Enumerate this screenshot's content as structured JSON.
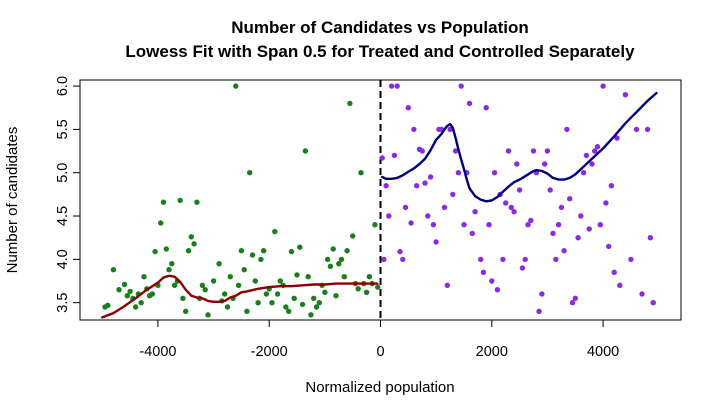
{
  "chart_data": {
    "type": "scatter",
    "title": "Number of Candidates vs Population",
    "subtitle": "Lowess Fit with Span 0.5 for Treated and Controlled Separately",
    "xlabel": "Normalized population",
    "ylabel": "Number of candidates",
    "xlim": [
      -5400,
      5400
    ],
    "ylim": [
      3.3,
      6.07
    ],
    "x_ticks": [
      -4000,
      -2000,
      0,
      2000,
      4000
    ],
    "x_tick_labels": [
      "-4000",
      "-2000",
      "0",
      "2000",
      "4000"
    ],
    "y_ticks": [
      3.5,
      4.0,
      4.5,
      5.0,
      5.5,
      6.0
    ],
    "y_tick_labels": [
      "3.5",
      "4.0",
      "4.5",
      "5.0",
      "5.5",
      "6.0"
    ],
    "grid": false,
    "cutoff": 0,
    "series": [
      {
        "role": "control",
        "mark": "point",
        "color": "#1a7f1a",
        "points": [
          [
            -4950,
            3.45
          ],
          [
            -4900,
            3.47
          ],
          [
            -4800,
            3.88
          ],
          [
            -4700,
            3.65
          ],
          [
            -4600,
            3.71
          ],
          [
            -4550,
            3.58
          ],
          [
            -4500,
            3.63
          ],
          [
            -4450,
            3.55
          ],
          [
            -4400,
            3.45
          ],
          [
            -4350,
            3.6
          ],
          [
            -4300,
            3.5
          ],
          [
            -4250,
            3.8
          ],
          [
            -4200,
            3.66
          ],
          [
            -4150,
            3.58
          ],
          [
            -4100,
            3.6
          ],
          [
            -4050,
            4.09
          ],
          [
            -4000,
            3.7
          ],
          [
            -3950,
            4.42
          ],
          [
            -3900,
            4.66
          ],
          [
            -3850,
            4.12
          ],
          [
            -3800,
            3.88
          ],
          [
            -3750,
            3.95
          ],
          [
            -3700,
            3.7
          ],
          [
            -3650,
            3.75
          ],
          [
            -3600,
            4.68
          ],
          [
            -3550,
            3.55
          ],
          [
            -3500,
            3.4
          ],
          [
            -3450,
            4.1
          ],
          [
            -3400,
            4.26
          ],
          [
            -3350,
            4.18
          ],
          [
            -3300,
            4.66
          ],
          [
            -3250,
            3.55
          ],
          [
            -3200,
            3.7
          ],
          [
            -3150,
            3.65
          ],
          [
            -3100,
            3.36
          ],
          [
            -3000,
            3.75
          ],
          [
            -2900,
            3.95
          ],
          [
            -2850,
            3.52
          ],
          [
            -2800,
            3.6
          ],
          [
            -2750,
            3.45
          ],
          [
            -2700,
            3.8
          ],
          [
            -2650,
            3.55
          ],
          [
            -2600,
            6.0
          ],
          [
            -2550,
            3.7
          ],
          [
            -2500,
            4.1
          ],
          [
            -2450,
            3.88
          ],
          [
            -2400,
            3.4
          ],
          [
            -2350,
            5.0
          ],
          [
            -2300,
            4.05
          ],
          [
            -2250,
            3.75
          ],
          [
            -2200,
            3.5
          ],
          [
            -2150,
            4.0
          ],
          [
            -2100,
            4.1
          ],
          [
            -2050,
            3.6
          ],
          [
            -2000,
            3.66
          ],
          [
            -1950,
            3.5
          ],
          [
            -1900,
            4.32
          ],
          [
            -1850,
            3.6
          ],
          [
            -1800,
            3.75
          ],
          [
            -1750,
            3.7
          ],
          [
            -1700,
            3.45
          ],
          [
            -1650,
            3.4
          ],
          [
            -1600,
            4.09
          ],
          [
            -1550,
            3.55
          ],
          [
            -1500,
            3.82
          ],
          [
            -1450,
            4.14
          ],
          [
            -1400,
            3.48
          ],
          [
            -1350,
            5.25
          ],
          [
            -1300,
            3.8
          ],
          [
            -1250,
            3.36
          ],
          [
            -1200,
            3.55
          ],
          [
            -1150,
            3.45
          ],
          [
            -1100,
            3.5
          ],
          [
            -1050,
            3.7
          ],
          [
            -1000,
            3.62
          ],
          [
            -950,
            4.0
          ],
          [
            -900,
            3.92
          ],
          [
            -850,
            4.12
          ],
          [
            -800,
            3.58
          ],
          [
            -750,
            3.95
          ],
          [
            -700,
            4.0
          ],
          [
            -650,
            3.8
          ],
          [
            -600,
            4.1
          ],
          [
            -550,
            5.8
          ],
          [
            -500,
            4.27
          ],
          [
            -450,
            3.72
          ],
          [
            -400,
            3.66
          ],
          [
            -350,
            5.0
          ],
          [
            -300,
            3.72
          ],
          [
            -250,
            3.62
          ],
          [
            -200,
            3.8
          ],
          [
            -150,
            3.72
          ],
          [
            -100,
            4.4
          ],
          [
            -50,
            3.68
          ]
        ]
      },
      {
        "role": "treated",
        "mark": "point",
        "color": "#8a2be2",
        "points": [
          [
            30,
            5.17
          ],
          [
            60,
            4.0
          ],
          [
            100,
            4.85
          ],
          [
            150,
            4.5
          ],
          [
            200,
            6.0
          ],
          [
            250,
            5.2
          ],
          [
            300,
            6.0
          ],
          [
            350,
            4.09
          ],
          [
            400,
            4.0
          ],
          [
            450,
            4.6
          ],
          [
            500,
            5.75
          ],
          [
            550,
            4.42
          ],
          [
            600,
            5.5
          ],
          [
            650,
            4.85
          ],
          [
            700,
            5.27
          ],
          [
            750,
            5.25
          ],
          [
            800,
            4.88
          ],
          [
            850,
            4.5
          ],
          [
            900,
            4.95
          ],
          [
            950,
            4.4
          ],
          [
            1000,
            4.2
          ],
          [
            1050,
            5.5
          ],
          [
            1100,
            5.5
          ],
          [
            1150,
            4.6
          ],
          [
            1200,
            3.7
          ],
          [
            1250,
            5.5
          ],
          [
            1300,
            4.75
          ],
          [
            1350,
            5.25
          ],
          [
            1400,
            5.0
          ],
          [
            1450,
            6.0
          ],
          [
            1500,
            4.4
          ],
          [
            1550,
            5.0
          ],
          [
            1600,
            5.8
          ],
          [
            1650,
            4.3
          ],
          [
            1700,
            4.55
          ],
          [
            1800,
            4.0
          ],
          [
            1850,
            3.85
          ],
          [
            1900,
            5.75
          ],
          [
            1950,
            4.4
          ],
          [
            2000,
            3.75
          ],
          [
            2050,
            5.0
          ],
          [
            2100,
            3.65
          ],
          [
            2150,
            4.75
          ],
          [
            2200,
            4.0
          ],
          [
            2250,
            4.65
          ],
          [
            2300,
            5.25
          ],
          [
            2350,
            4.6
          ],
          [
            2400,
            4.55
          ],
          [
            2450,
            5.1
          ],
          [
            2500,
            4.8
          ],
          [
            2550,
            3.9
          ],
          [
            2600,
            4.0
          ],
          [
            2650,
            4.4
          ],
          [
            2700,
            4.45
          ],
          [
            2750,
            5.25
          ],
          [
            2800,
            5.0
          ],
          [
            2850,
            3.4
          ],
          [
            2900,
            3.6
          ],
          [
            2950,
            5.1
          ],
          [
            3000,
            5.25
          ],
          [
            3050,
            4.8
          ],
          [
            3100,
            4.3
          ],
          [
            3150,
            4.0
          ],
          [
            3200,
            4.4
          ],
          [
            3250,
            4.6
          ],
          [
            3300,
            4.1
          ],
          [
            3350,
            5.5
          ],
          [
            3400,
            4.7
          ],
          [
            3450,
            3.5
          ],
          [
            3500,
            3.55
          ],
          [
            3550,
            4.25
          ],
          [
            3600,
            4.5
          ],
          [
            3650,
            5.0
          ],
          [
            3700,
            5.2
          ],
          [
            3750,
            4.35
          ],
          [
            3800,
            5.1
          ],
          [
            3850,
            5.25
          ],
          [
            3900,
            5.3
          ],
          [
            3950,
            4.4
          ],
          [
            4000,
            6.0
          ],
          [
            4050,
            4.65
          ],
          [
            4100,
            4.15
          ],
          [
            4150,
            4.85
          ],
          [
            4200,
            3.85
          ],
          [
            4250,
            5.4
          ],
          [
            4300,
            3.7
          ],
          [
            4400,
            5.9
          ],
          [
            4500,
            4.0
          ],
          [
            4600,
            5.5
          ],
          [
            4700,
            3.6
          ],
          [
            4800,
            5.5
          ],
          [
            4850,
            4.25
          ],
          [
            4900,
            3.5
          ]
        ]
      },
      {
        "role": "control_fit",
        "mark": "line",
        "color": "#8b0000",
        "points": [
          [
            -5000,
            3.33
          ],
          [
            -4800,
            3.38
          ],
          [
            -4600,
            3.46
          ],
          [
            -4400,
            3.55
          ],
          [
            -4200,
            3.65
          ],
          [
            -4000,
            3.73
          ],
          [
            -3900,
            3.79
          ],
          [
            -3800,
            3.81
          ],
          [
            -3700,
            3.8
          ],
          [
            -3600,
            3.74
          ],
          [
            -3500,
            3.65
          ],
          [
            -3400,
            3.58
          ],
          [
            -3300,
            3.56
          ],
          [
            -3200,
            3.55
          ],
          [
            -3100,
            3.52
          ],
          [
            -3000,
            3.51
          ],
          [
            -2900,
            3.51
          ],
          [
            -2800,
            3.52
          ],
          [
            -2700,
            3.56
          ],
          [
            -2600,
            3.58
          ],
          [
            -2500,
            3.62
          ],
          [
            -2400,
            3.63
          ],
          [
            -2200,
            3.66
          ],
          [
            -2000,
            3.68
          ],
          [
            -1800,
            3.69
          ],
          [
            -1600,
            3.69
          ],
          [
            -1400,
            3.7
          ],
          [
            -1200,
            3.71
          ],
          [
            -1000,
            3.71
          ],
          [
            -800,
            3.72
          ],
          [
            -600,
            3.72
          ],
          [
            -400,
            3.72
          ],
          [
            -200,
            3.72
          ],
          [
            -60,
            3.72
          ]
        ]
      },
      {
        "role": "treated_fit",
        "mark": "line",
        "color": "#00007f",
        "points": [
          [
            30,
            4.95
          ],
          [
            100,
            4.93
          ],
          [
            200,
            4.93
          ],
          [
            300,
            4.94
          ],
          [
            400,
            4.97
          ],
          [
            500,
            5.01
          ],
          [
            600,
            5.05
          ],
          [
            700,
            5.1
          ],
          [
            800,
            5.16
          ],
          [
            900,
            5.26
          ],
          [
            1000,
            5.38
          ],
          [
            1100,
            5.45
          ],
          [
            1150,
            5.5
          ],
          [
            1200,
            5.54
          ],
          [
            1250,
            5.56
          ],
          [
            1300,
            5.52
          ],
          [
            1350,
            5.4
          ],
          [
            1400,
            5.27
          ],
          [
            1450,
            5.15
          ],
          [
            1500,
            5.04
          ],
          [
            1550,
            4.92
          ],
          [
            1600,
            4.82
          ],
          [
            1700,
            4.73
          ],
          [
            1800,
            4.69
          ],
          [
            1900,
            4.67
          ],
          [
            2000,
            4.68
          ],
          [
            2100,
            4.72
          ],
          [
            2200,
            4.78
          ],
          [
            2300,
            4.84
          ],
          [
            2400,
            4.89
          ],
          [
            2500,
            4.92
          ],
          [
            2600,
            4.96
          ],
          [
            2700,
            5.0
          ],
          [
            2750,
            5.02
          ],
          [
            2800,
            5.03
          ],
          [
            2900,
            5.02
          ],
          [
            3000,
            4.99
          ],
          [
            3100,
            4.94
          ],
          [
            3200,
            4.92
          ],
          [
            3300,
            4.92
          ],
          [
            3400,
            4.94
          ],
          [
            3500,
            4.98
          ],
          [
            3600,
            5.04
          ],
          [
            3700,
            5.1
          ],
          [
            3800,
            5.16
          ],
          [
            3900,
            5.22
          ],
          [
            4000,
            5.28
          ],
          [
            4200,
            5.42
          ],
          [
            4400,
            5.57
          ],
          [
            4600,
            5.7
          ],
          [
            4800,
            5.83
          ],
          [
            4960,
            5.92
          ]
        ]
      }
    ]
  }
}
